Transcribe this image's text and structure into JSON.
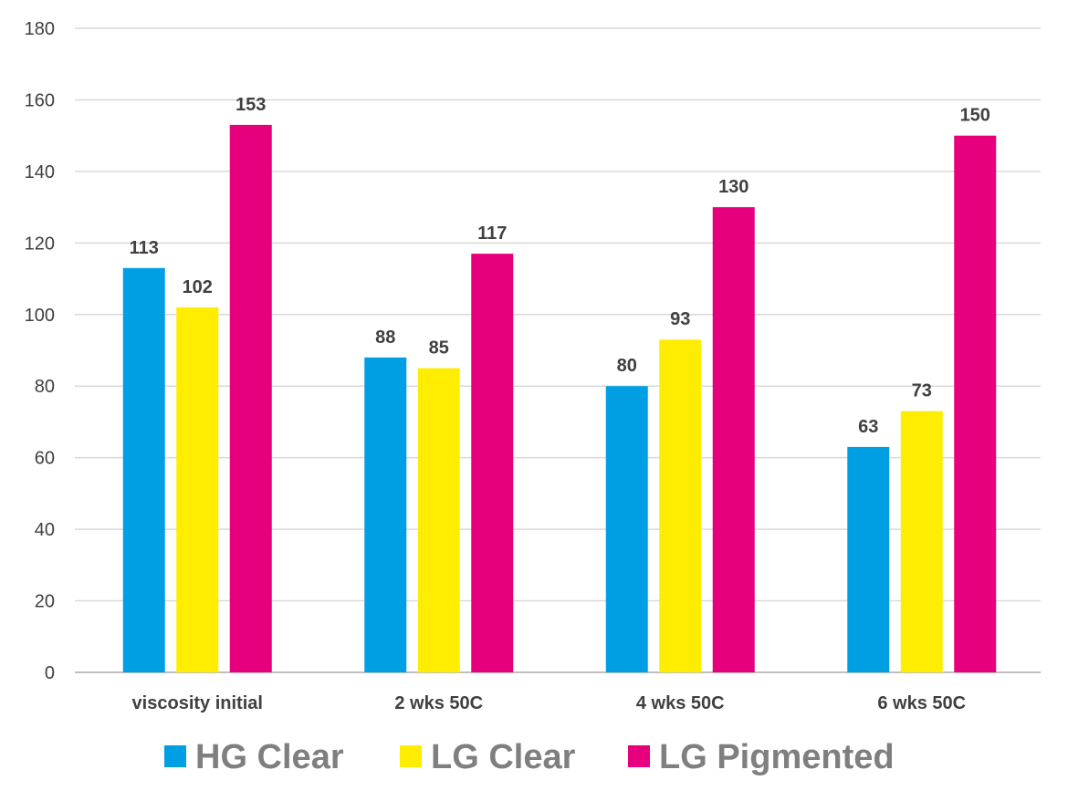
{
  "chart_data": {
    "type": "bar",
    "title": "",
    "xlabel": "",
    "ylabel": "",
    "ylim": [
      0,
      180
    ],
    "yticks": [
      0,
      20,
      40,
      60,
      80,
      100,
      120,
      140,
      160,
      180
    ],
    "grid": true,
    "legend_position": "bottom",
    "categories": [
      "viscosity initial",
      "2 wks 50C",
      "4 wks 50C",
      "6 wks 50C"
    ],
    "series": [
      {
        "name": "HG Clear",
        "color": "#009FE3",
        "values": [
          113,
          88,
          80,
          63
        ]
      },
      {
        "name": "LG Clear",
        "color": "#FFED00",
        "values": [
          102,
          85,
          93,
          73
        ]
      },
      {
        "name": "LG Pigmented",
        "color": "#E6007E",
        "values": [
          153,
          117,
          130,
          150
        ]
      }
    ]
  }
}
